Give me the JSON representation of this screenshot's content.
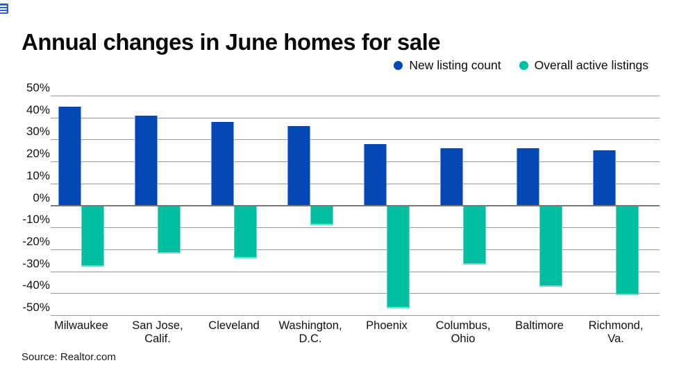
{
  "header": {
    "title": "Annual changes in June homes for sale"
  },
  "legend": [
    {
      "label": "New listing count",
      "color": "#0547b4"
    },
    {
      "label": "Overall active listings",
      "color": "#00bfa0"
    }
  ],
  "chart_data": {
    "type": "bar",
    "title": "Annual changes in June homes for sale",
    "categories": [
      "Milwaukee",
      "San Jose,\nCalif.",
      "Cleveland",
      "Washington,\nD.C.",
      "Phoenix",
      "Columbus,\nOhio",
      "Baltimore",
      "Richmond,\nVa."
    ],
    "series": [
      {
        "name": "New listing count",
        "color": "#0547b4",
        "values": [
          45,
          41,
          38,
          36,
          28,
          26,
          26,
          25
        ]
      },
      {
        "name": "Overall active listings",
        "color": "#00bfa0",
        "values": [
          -28,
          -22,
          -24,
          -9,
          -47,
          -27,
          -37,
          -41
        ]
      }
    ],
    "ylim": [
      -50,
      50
    ],
    "ytick_step": 10,
    "ytick_suffix": "%",
    "grid": true,
    "legend_position": "top-right",
    "colors": {
      "grid": "#999999",
      "zero_axis": "#787878",
      "text": "#111111"
    }
  },
  "footer": {
    "source": "Source: Realtor.com"
  }
}
